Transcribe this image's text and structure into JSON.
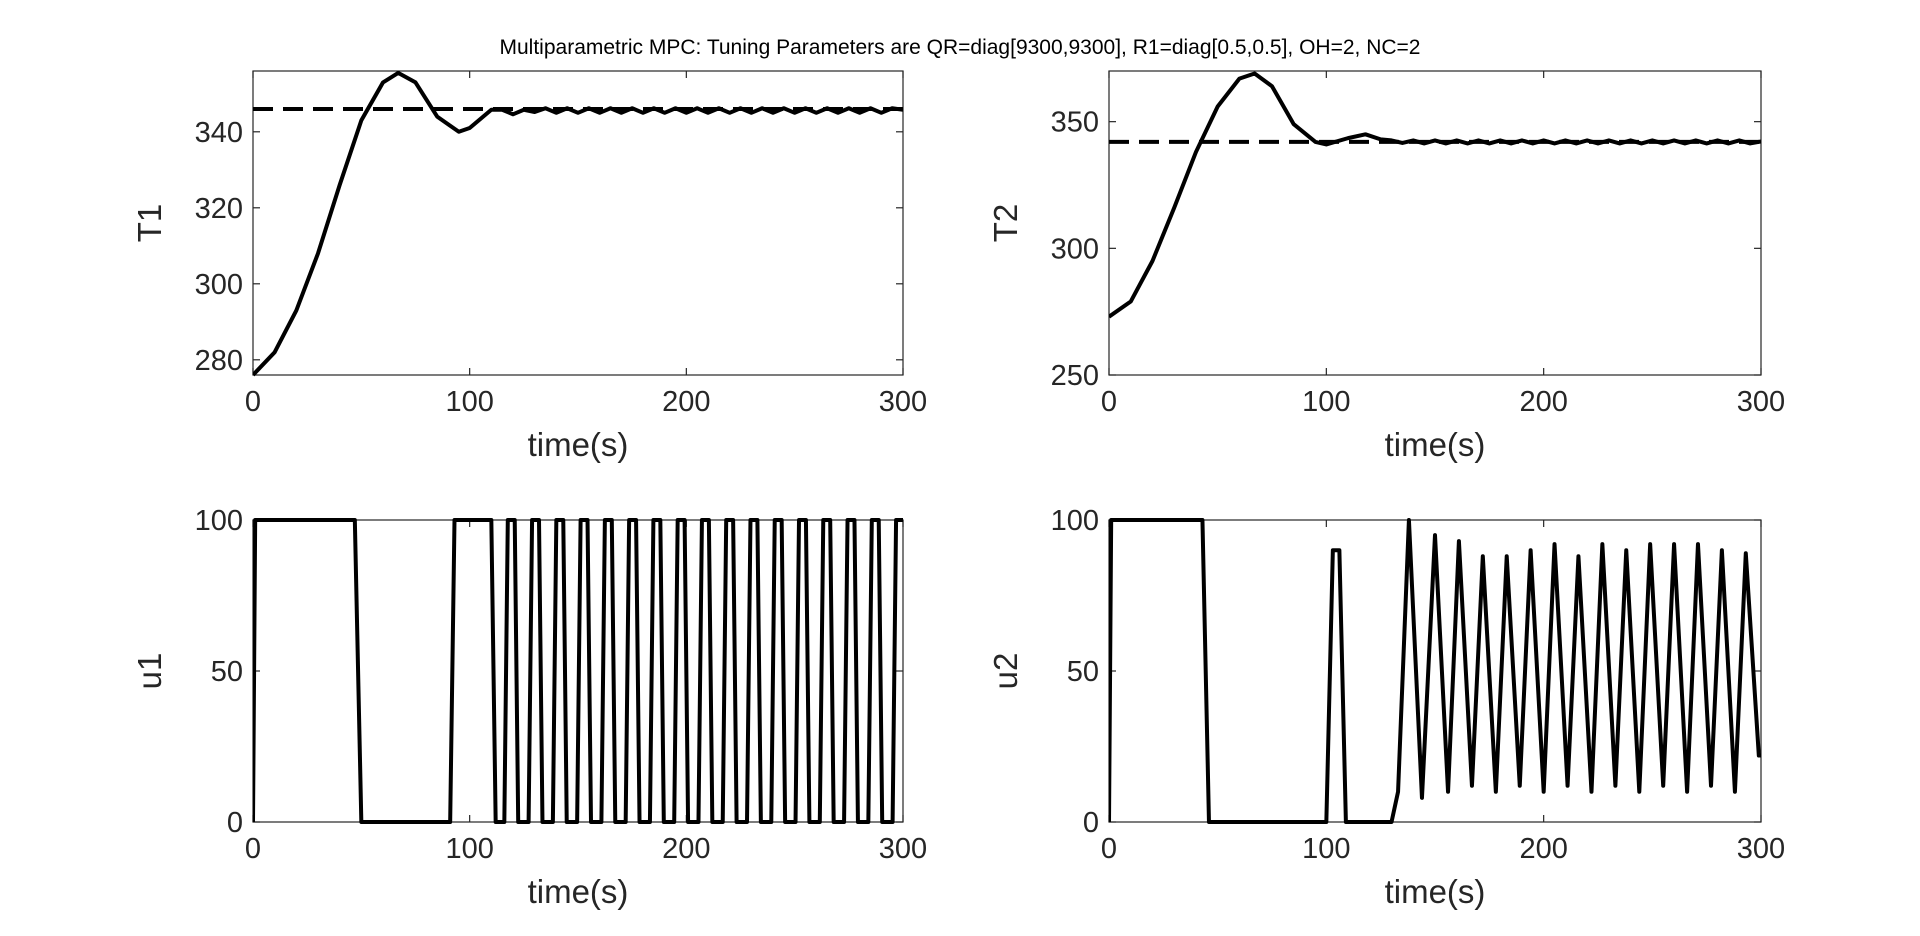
{
  "figure_title": "Multiparametric MPC: Tuning Parameters are QR=diag[9300,9300],  R1=diag[0.5,0.5],  OH=2,  NC=2",
  "colors": {
    "line": "#000000",
    "axis": "#262626",
    "background": "#ffffff"
  },
  "chart_data": [
    {
      "type": "line",
      "title": "",
      "xlabel": "time(s)",
      "ylabel": "T1",
      "xlim": [
        0,
        300
      ],
      "ylim": [
        276,
        356
      ],
      "xticks": [
        0,
        100,
        200,
        300
      ],
      "yticks": [
        280,
        300,
        320,
        340
      ],
      "grid": false,
      "series": [
        {
          "style": "dashed",
          "x": [
            0,
            300
          ],
          "y": [
            346,
            346
          ]
        },
        {
          "style": "solid",
          "x": [
            0,
            10,
            20,
            30,
            40,
            50,
            60,
            67,
            75,
            85,
            95,
            100,
            110,
            115,
            120,
            125,
            130,
            135,
            140,
            145,
            150,
            155,
            160,
            165,
            170,
            175,
            180,
            185,
            190,
            195,
            200,
            205,
            210,
            215,
            220,
            225,
            230,
            235,
            240,
            245,
            250,
            255,
            260,
            265,
            270,
            275,
            280,
            285,
            290,
            295,
            300
          ],
          "y": [
            276,
            282,
            293,
            308,
            326,
            343,
            353,
            355.5,
            353,
            344,
            340,
            341,
            345.8,
            345.8,
            344.6,
            345.8,
            345.2,
            346.2,
            345.0,
            346.2,
            345.0,
            346.2,
            345.0,
            346.2,
            345.0,
            346.2,
            345.0,
            346.2,
            345.0,
            346.2,
            345.0,
            346.2,
            345.0,
            346.2,
            345.0,
            346.2,
            345.0,
            346.2,
            345.0,
            346.2,
            345.0,
            346.2,
            345.0,
            346.2,
            345.0,
            346.2,
            345.0,
            346.2,
            345.0,
            346.2,
            345.8
          ]
        }
      ]
    },
    {
      "type": "line",
      "title": "",
      "xlabel": "time(s)",
      "ylabel": "T2",
      "xlim": [
        0,
        300
      ],
      "ylim": [
        250,
        370
      ],
      "xticks": [
        0,
        100,
        200,
        300
      ],
      "yticks": [
        250,
        300,
        350
      ],
      "grid": false,
      "series": [
        {
          "style": "dashed",
          "x": [
            0,
            300
          ],
          "y": [
            342,
            342
          ]
        },
        {
          "style": "solid",
          "x": [
            0,
            10,
            20,
            30,
            40,
            50,
            60,
            67,
            75,
            85,
            95,
            100,
            110,
            118,
            125,
            130,
            135,
            140,
            145,
            150,
            155,
            160,
            165,
            170,
            175,
            180,
            185,
            190,
            195,
            200,
            205,
            210,
            215,
            220,
            225,
            230,
            235,
            240,
            245,
            250,
            255,
            260,
            265,
            270,
            275,
            280,
            285,
            290,
            295,
            300
          ],
          "y": [
            273,
            279,
            295,
            316,
            338,
            356,
            367,
            369,
            364,
            349,
            342,
            341,
            343.5,
            345,
            343,
            342.6,
            341.6,
            342.6,
            341.4,
            342.6,
            341.4,
            342.6,
            341.4,
            342.6,
            341.4,
            342.6,
            341.4,
            342.6,
            341.4,
            342.6,
            341.4,
            342.6,
            341.4,
            342.6,
            341.4,
            342.6,
            341.4,
            342.6,
            341.4,
            342.6,
            341.4,
            342.6,
            341.4,
            342.6,
            341.4,
            342.6,
            341.4,
            342.6,
            341.4,
            342.2
          ]
        }
      ]
    },
    {
      "type": "line",
      "title": "",
      "xlabel": "time(s)",
      "ylabel": "u1",
      "xlim": [
        0,
        300
      ],
      "ylim": [
        0,
        100
      ],
      "xticks": [
        0,
        100,
        200,
        300
      ],
      "yticks": [
        0,
        50,
        100
      ],
      "grid": false,
      "series": [
        {
          "style": "solid",
          "x": [
            0,
            1,
            47,
            50,
            91,
            93,
            110,
            112,
            116,
            117.6,
            120.8,
            122.4,
            127.2,
            128.8,
            132,
            133.6,
            138.4,
            140,
            143.2,
            144.8,
            149.6,
            151.2,
            154.4,
            156,
            160.8,
            162.4,
            165.6,
            167.2,
            172,
            173.6,
            176.8,
            178.4,
            183.2,
            184.8,
            188,
            189.6,
            194.4,
            196,
            199.2,
            200.8,
            205.6,
            207.2,
            210.4,
            212,
            216.8,
            218.4,
            221.6,
            223.2,
            228,
            229.6,
            232.8,
            234.4,
            239.2,
            240.8,
            244,
            245.6,
            250.4,
            252,
            255.2,
            256.8,
            261.6,
            263.2,
            266.4,
            268,
            272.8,
            274.4,
            277.6,
            279.2,
            284,
            285.6,
            288.8,
            290.4,
            295.2,
            296.8,
            300
          ],
          "y": [
            0,
            100,
            100,
            0,
            0,
            100,
            100,
            0,
            0,
            100,
            100,
            0,
            0,
            100,
            100,
            0,
            0,
            100,
            100,
            0,
            0,
            100,
            100,
            0,
            0,
            100,
            100,
            0,
            0,
            100,
            100,
            0,
            0,
            100,
            100,
            0,
            0,
            100,
            100,
            0,
            0,
            100,
            100,
            0,
            0,
            100,
            100,
            0,
            0,
            100,
            100,
            0,
            0,
            100,
            100,
            0,
            0,
            100,
            100,
            0,
            0,
            100,
            100,
            0,
            0,
            100,
            100,
            0,
            0,
            100,
            100,
            0,
            0,
            100,
            100
          ]
        }
      ]
    },
    {
      "type": "line",
      "title": "",
      "xlabel": "time(s)",
      "ylabel": "u2",
      "xlim": [
        0,
        300
      ],
      "ylim": [
        0,
        100
      ],
      "xticks": [
        0,
        100,
        200,
        300
      ],
      "yticks": [
        0,
        50,
        100
      ],
      "grid": false,
      "series": [
        {
          "style": "solid",
          "x": [
            0,
            1,
            43,
            46,
            100,
            103,
            106,
            109,
            111,
            130,
            133,
            138,
            144,
            150,
            156,
            161,
            167,
            172,
            178,
            183,
            189,
            194,
            200,
            205,
            211,
            216,
            222,
            227,
            233,
            238,
            244,
            249,
            255,
            260,
            266,
            271,
            277,
            282,
            288,
            293,
            299,
            300
          ],
          "y": [
            0,
            100,
            100,
            0,
            0,
            90,
            90,
            0,
            0,
            0,
            10,
            100,
            8,
            95,
            10,
            93,
            12,
            88,
            10,
            88,
            12,
            90,
            10,
            92,
            12,
            88,
            10,
            92,
            12,
            90,
            10,
            92,
            12,
            92,
            10,
            92,
            12,
            90,
            10,
            89,
            22,
            22
          ]
        }
      ]
    }
  ]
}
